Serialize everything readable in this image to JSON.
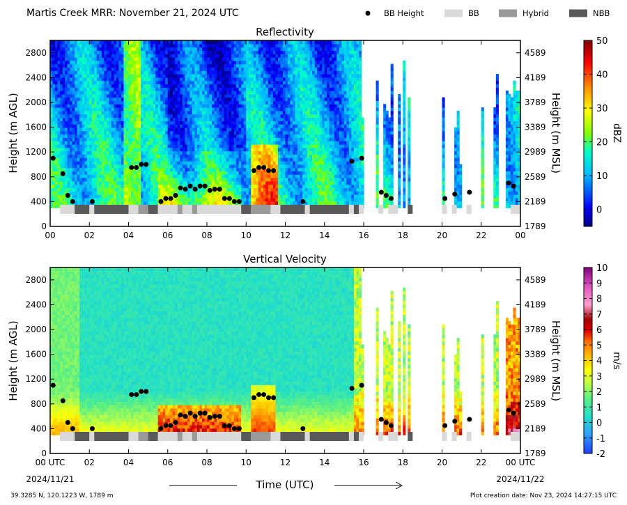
{
  "figure": {
    "title": "Martis Creek MRR:  November 21, 2024 UTC",
    "legend": [
      {
        "label": "BB Height",
        "kind": "dot",
        "color": "#000000"
      },
      {
        "label": "BB",
        "kind": "swatch",
        "color": "#d9d9d9"
      },
      {
        "label": "Hybrid",
        "kind": "swatch",
        "color": "#999999"
      },
      {
        "label": "NBB",
        "kind": "swatch",
        "color": "#595959"
      }
    ],
    "footer_left": "39.3285 N, 120.1223 W, 1789 m",
    "footer_right": "Plot creation date: Nov 23, 2024 14:27:15 UTC",
    "xlabel": "Time (UTC)",
    "date_start": "2024/11/21",
    "date_end": "2024/11/22"
  },
  "chart_data": [
    {
      "type": "heatmap",
      "title": "Reflectivity",
      "ylabel": "Height (m AGL)",
      "ylabel_right": "Height (m MSL)",
      "colorbar_label": "dBZ",
      "colorbar_ticks": [
        "50",
        "40",
        "30",
        "20",
        "10",
        "0"
      ],
      "colorbar_range": [
        -5,
        50
      ],
      "xlim": [
        0,
        24
      ],
      "ylim": [
        0,
        3000
      ],
      "xticks": [
        "00",
        "02",
        "04",
        "06",
        "08",
        "10",
        "12",
        "14",
        "16",
        "18",
        "20",
        "22",
        "00"
      ],
      "yticks": [
        "0",
        "400",
        "800",
        "1200",
        "1600",
        "2000",
        "2400",
        "2800"
      ],
      "yticks_right": [
        "1789",
        "2189",
        "2589",
        "2989",
        "3389",
        "3789",
        "4189",
        "4589"
      ]
    },
    {
      "type": "heatmap",
      "title": "Vertical Velocity",
      "ylabel": "Height (m AGL)",
      "ylabel_right": "Height (m MSL)",
      "colorbar_label": "m/s",
      "colorbar_ticks": [
        "10",
        "9",
        "8",
        "7",
        "6",
        "5",
        "4",
        "3",
        "2",
        "1",
        "0",
        "-1",
        "-2"
      ],
      "colorbar_range": [
        -2,
        10
      ],
      "xlim": [
        0,
        24
      ],
      "ylim": [
        0,
        3000
      ],
      "xticks": [
        "00 UTC",
        "02",
        "04",
        "06",
        "08",
        "10",
        "12",
        "14",
        "16",
        "18",
        "20",
        "22",
        "00 UTC"
      ],
      "yticks": [
        "0",
        "400",
        "800",
        "1200",
        "1600",
        "2000",
        "2400",
        "2800"
      ],
      "yticks_right": [
        "1789",
        "2189",
        "2589",
        "2989",
        "3389",
        "3789",
        "4189",
        "4589"
      ]
    }
  ],
  "bb_heights": [
    [
      0.15,
      1100
    ],
    [
      0.65,
      850
    ],
    [
      0.9,
      500
    ],
    [
      1.15,
      400
    ],
    [
      2.15,
      400
    ],
    [
      4.15,
      950
    ],
    [
      4.4,
      950
    ],
    [
      4.65,
      1000
    ],
    [
      4.9,
      1000
    ],
    [
      5.65,
      400
    ],
    [
      5.9,
      450
    ],
    [
      6.15,
      450
    ],
    [
      6.4,
      500
    ],
    [
      6.65,
      620
    ],
    [
      6.9,
      600
    ],
    [
      7.15,
      650
    ],
    [
      7.4,
      600
    ],
    [
      7.65,
      650
    ],
    [
      7.9,
      650
    ],
    [
      8.15,
      580
    ],
    [
      8.4,
      600
    ],
    [
      8.65,
      600
    ],
    [
      8.9,
      450
    ],
    [
      9.15,
      450
    ],
    [
      9.4,
      400
    ],
    [
      9.65,
      400
    ],
    [
      10.4,
      900
    ],
    [
      10.65,
      950
    ],
    [
      10.9,
      950
    ],
    [
      11.15,
      900
    ],
    [
      11.4,
      900
    ],
    [
      12.9,
      400
    ],
    [
      15.4,
      1050
    ],
    [
      15.9,
      1100
    ],
    [
      16.9,
      550
    ],
    [
      17.15,
      500
    ],
    [
      17.4,
      450
    ],
    [
      20.15,
      450
    ],
    [
      20.65,
      520
    ],
    [
      21.4,
      550
    ],
    [
      23.4,
      700
    ],
    [
      23.65,
      650
    ]
  ],
  "bb_types": [
    {
      "start": 0.5,
      "end": 1.25,
      "type": "BB"
    },
    {
      "start": 1.25,
      "end": 2.0,
      "type": "NBB"
    },
    {
      "start": 2.0,
      "end": 2.25,
      "type": "BB"
    },
    {
      "start": 2.25,
      "end": 4.0,
      "type": "NBB"
    },
    {
      "start": 4.0,
      "end": 4.5,
      "type": "BB"
    },
    {
      "start": 4.5,
      "end": 5.0,
      "type": "Hybrid"
    },
    {
      "start": 5.0,
      "end": 5.5,
      "type": "NBB"
    },
    {
      "start": 5.5,
      "end": 6.5,
      "type": "BB"
    },
    {
      "start": 6.5,
      "end": 6.75,
      "type": "Hybrid"
    },
    {
      "start": 6.75,
      "end": 7.25,
      "type": "BB"
    },
    {
      "start": 7.25,
      "end": 7.5,
      "type": "Hybrid"
    },
    {
      "start": 7.5,
      "end": 9.75,
      "type": "BB"
    },
    {
      "start": 9.75,
      "end": 10.25,
      "type": "NBB"
    },
    {
      "start": 10.25,
      "end": 11.25,
      "type": "Hybrid"
    },
    {
      "start": 11.25,
      "end": 11.75,
      "type": "BB"
    },
    {
      "start": 11.75,
      "end": 13.0,
      "type": "NBB"
    },
    {
      "start": 13.0,
      "end": 13.25,
      "type": "BB"
    },
    {
      "start": 13.25,
      "end": 15.25,
      "type": "NBB"
    },
    {
      "start": 15.25,
      "end": 15.5,
      "type": "BB"
    },
    {
      "start": 15.5,
      "end": 15.75,
      "type": "NBB"
    },
    {
      "start": 15.75,
      "end": 16.0,
      "type": "BB"
    },
    {
      "start": 16.75,
      "end": 17.0,
      "type": "BB"
    },
    {
      "start": 17.25,
      "end": 17.75,
      "type": "BB"
    },
    {
      "start": 18.25,
      "end": 18.5,
      "type": "NBB"
    },
    {
      "start": 20.0,
      "end": 20.25,
      "type": "BB"
    },
    {
      "start": 20.5,
      "end": 20.75,
      "type": "BB"
    },
    {
      "start": 21.25,
      "end": 21.5,
      "type": "BB"
    },
    {
      "start": 23.5,
      "end": 24.0,
      "type": "BB"
    }
  ]
}
